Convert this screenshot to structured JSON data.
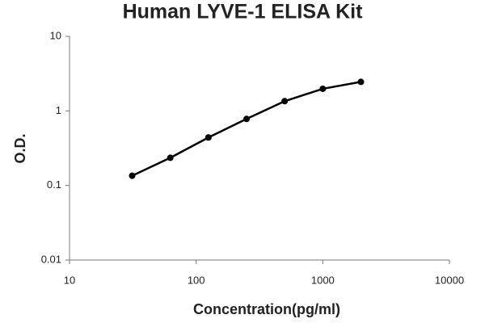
{
  "chart_data": {
    "type": "line",
    "title": "Human LYVE-1 ELISA Kit",
    "x_label": "Concentration(pg/ml)",
    "y_label": "O.D.",
    "x": [
      31.25,
      62.5,
      125,
      250,
      500,
      1000,
      2000
    ],
    "values": [
      0.135,
      0.235,
      0.44,
      0.78,
      1.35,
      1.98,
      2.45
    ],
    "color": "#000000",
    "x_log": true,
    "y_log": true,
    "xlim": [
      10,
      10000
    ],
    "ylim": [
      0.01,
      10
    ],
    "xticks": [
      10,
      100,
      1000,
      10000
    ],
    "yticks": [
      0.01,
      0.1,
      1,
      10
    ]
  }
}
